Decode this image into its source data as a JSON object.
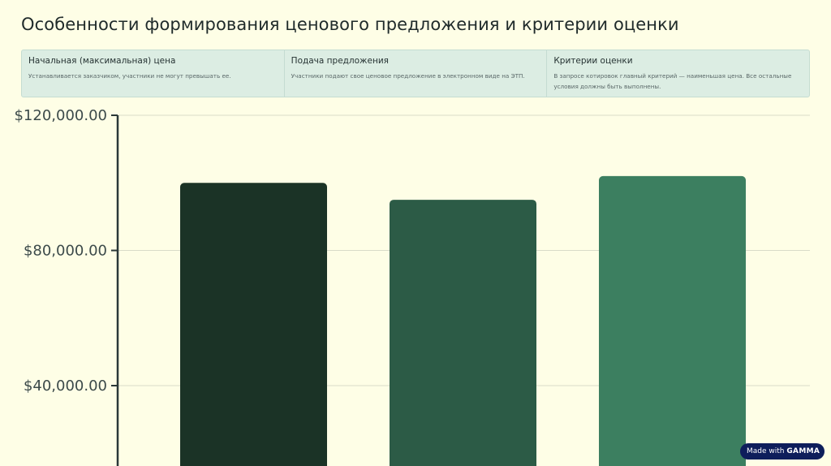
{
  "page": {
    "title": "Особенности формирования ценового предложения и критерии оценки"
  },
  "cards": [
    {
      "title": "Начальная (максимальная) цена",
      "text": "Устанавливается заказчиком, участники не могут превышать ее."
    },
    {
      "title": "Подача предложения",
      "text": "Участники подают свое ценовое предложение в электронном виде на ЭТП."
    },
    {
      "title": "Критерии оценки",
      "text": "В запросе котировок главный критерий — наименьшая цена. Все остальные условия должны быть выполнены."
    }
  ],
  "chart_data": {
    "type": "bar",
    "categories": [
      "",
      "",
      ""
    ],
    "values": [
      100000,
      95000,
      102000
    ],
    "colors": [
      "#1b3326",
      "#2c5b46",
      "#3c7f60"
    ],
    "yticks": [
      {
        "value": 40000,
        "label": "$40,000.00"
      },
      {
        "value": 80000,
        "label": "$80,000.00"
      },
      {
        "value": 120000,
        "label": "$120,000.00"
      }
    ],
    "title": "",
    "xlabel": "",
    "ylabel": "",
    "grid": true
  },
  "badge": {
    "made_with": "Made with",
    "brand": "GAMMA"
  }
}
